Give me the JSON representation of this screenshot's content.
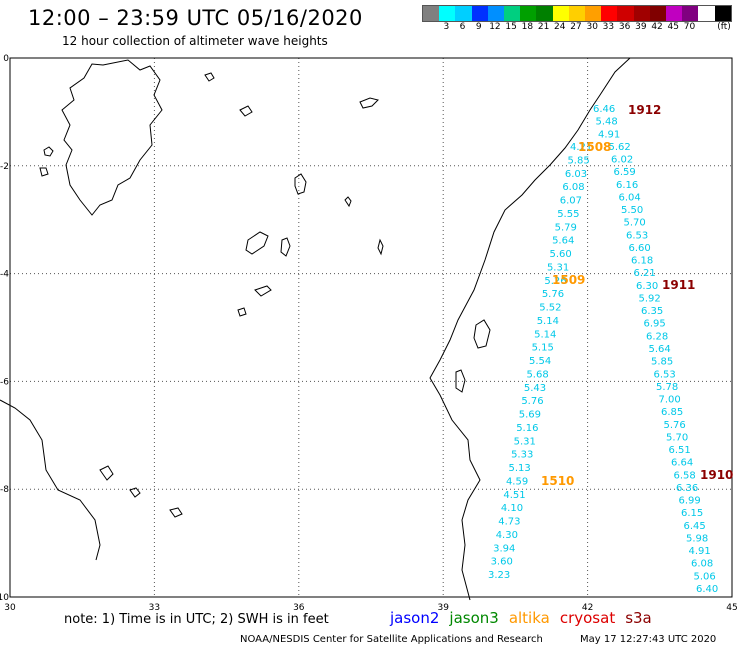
{
  "header": {
    "title": "12:00 – 23:59 UTC 05/16/2020",
    "subtitle": "12 hour collection of altimeter wave heights"
  },
  "color_scale": {
    "unit": "(ft)",
    "colors": [
      "#808080",
      "#00ffff",
      "#00cfff",
      "#0030ff",
      "#008fff",
      "#00cf80",
      "#00a000",
      "#008000",
      "#ffff00",
      "#ffcf00",
      "#ff9f00",
      "#ff0000",
      "#cf0000",
      "#a00000",
      "#800000",
      "#c000c0",
      "#800080",
      "#ffffff",
      "#000000"
    ],
    "labels": [
      "3",
      "6",
      "9",
      "12",
      "15",
      "18",
      "21",
      "24",
      "27",
      "30",
      "33",
      "36",
      "39",
      "42",
      "45",
      "70"
    ]
  },
  "axes": {
    "x_ticks": [
      "30",
      "33",
      "36",
      "39",
      "42",
      "45"
    ],
    "y_ticks": [
      "0",
      "-2",
      "-4",
      "-6",
      "-8",
      "-10"
    ]
  },
  "tracks": [
    {
      "label": "1912",
      "color": "#8b0000",
      "values": [
        "6.46",
        "5.48",
        "4.91",
        "5.62",
        "6.02",
        "6.59",
        "6.16",
        "6.04",
        "5.50",
        "5.70",
        "6.53",
        "6.60",
        "6.18",
        "6.21",
        "6.30",
        "5.92",
        "6.35",
        "6.95",
        "6.28",
        "5.64",
        "5.85",
        "6.53",
        "5.78",
        "7.00",
        "6.85",
        "5.76",
        "5.70",
        "6.51",
        "6.64",
        "6.58",
        "6.36",
        "6.99",
        "6.15",
        "6.45",
        "5.98",
        "4.91",
        "6.08",
        "5.06",
        "6.40"
      ]
    },
    {
      "label": "1911",
      "color": "#8b0000",
      "values": []
    },
    {
      "label": "1910",
      "color": "#8b0000",
      "values": []
    },
    {
      "label": "1508",
      "color": "#ff9900",
      "values": [
        "4.21",
        "5.85",
        "6.03",
        "6.08",
        "6.07",
        "5.55",
        "5.79",
        "5.64",
        "5.60",
        "5.31",
        "5.26",
        "5.76",
        "5.52",
        "5.14",
        "5.14",
        "5.15",
        "5.54",
        "5.68",
        "5.43",
        "5.76",
        "5.69",
        "5.16",
        "5.31",
        "5.33",
        "5.13",
        "4.59",
        "4.51",
        "4.10",
        "4.73",
        "4.30",
        "3.94",
        "3.60",
        "3.23"
      ]
    },
    {
      "label": "1509",
      "color": "#ff9900",
      "values": []
    },
    {
      "label": "1510",
      "color": "#ff9900",
      "values": []
    }
  ],
  "swh_color": "#00c8e8",
  "footer": {
    "note": "note:  1) Time is in UTC;  2) SWH is in feet",
    "missions": [
      {
        "name": "jason2",
        "color": "#0000ff"
      },
      {
        "name": "jason3",
        "color": "#008800"
      },
      {
        "name": "altika",
        "color": "#ff9900"
      },
      {
        "name": "cryosat",
        "color": "#dd0000"
      },
      {
        "name": "s3a",
        "color": "#8b0000"
      }
    ],
    "credit": "NOAA/NESDIS Center for Satellite Applications and Research",
    "timestamp": "May 17 12:27:43 UTC 2020"
  }
}
